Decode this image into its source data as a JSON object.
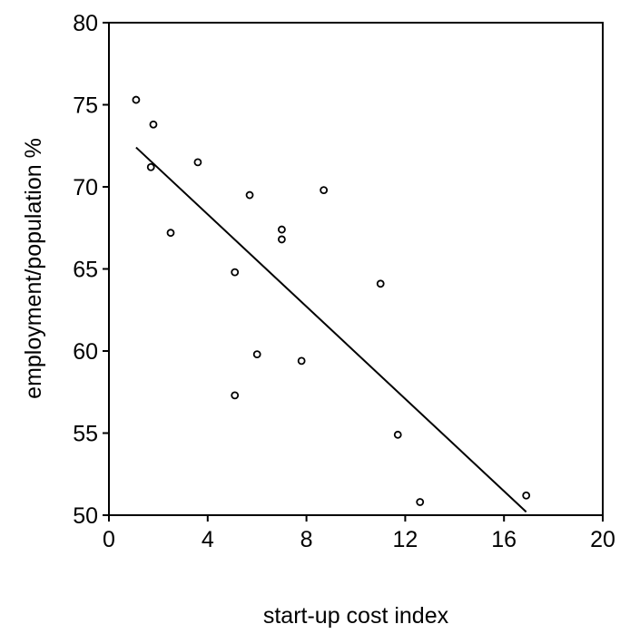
{
  "chart_data": {
    "type": "scatter",
    "title": "",
    "xlabel": "start-up cost index",
    "ylabel": "employment/population %",
    "xlim": [
      0,
      20
    ],
    "ylim": [
      50,
      80
    ],
    "xticks": [
      "0",
      "4",
      "8",
      "12",
      "16",
      "20"
    ],
    "yticks": [
      "50",
      "55",
      "60",
      "65",
      "70",
      "75",
      "80"
    ],
    "grid": false,
    "legend": "none",
    "marker": "open-circle",
    "colors": {
      "points": "#000000",
      "line": "#000000",
      "frame": "#000000"
    },
    "points": [
      {
        "x": 1.1,
        "y": 75.3
      },
      {
        "x": 1.8,
        "y": 73.8
      },
      {
        "x": 1.7,
        "y": 71.2
      },
      {
        "x": 2.5,
        "y": 67.2
      },
      {
        "x": 3.6,
        "y": 71.5
      },
      {
        "x": 5.1,
        "y": 64.8
      },
      {
        "x": 5.1,
        "y": 57.3
      },
      {
        "x": 5.7,
        "y": 69.5
      },
      {
        "x": 6.0,
        "y": 59.8
      },
      {
        "x": 7.0,
        "y": 67.4
      },
      {
        "x": 7.0,
        "y": 66.8
      },
      {
        "x": 7.8,
        "y": 59.4
      },
      {
        "x": 8.7,
        "y": 69.8
      },
      {
        "x": 11.0,
        "y": 64.1
      },
      {
        "x": 11.7,
        "y": 54.9
      },
      {
        "x": 12.6,
        "y": 50.8
      },
      {
        "x": 16.9,
        "y": 51.2
      }
    ],
    "fit_line": {
      "x": [
        1.1,
        16.9
      ],
      "y": [
        72.4,
        50.2
      ]
    }
  }
}
